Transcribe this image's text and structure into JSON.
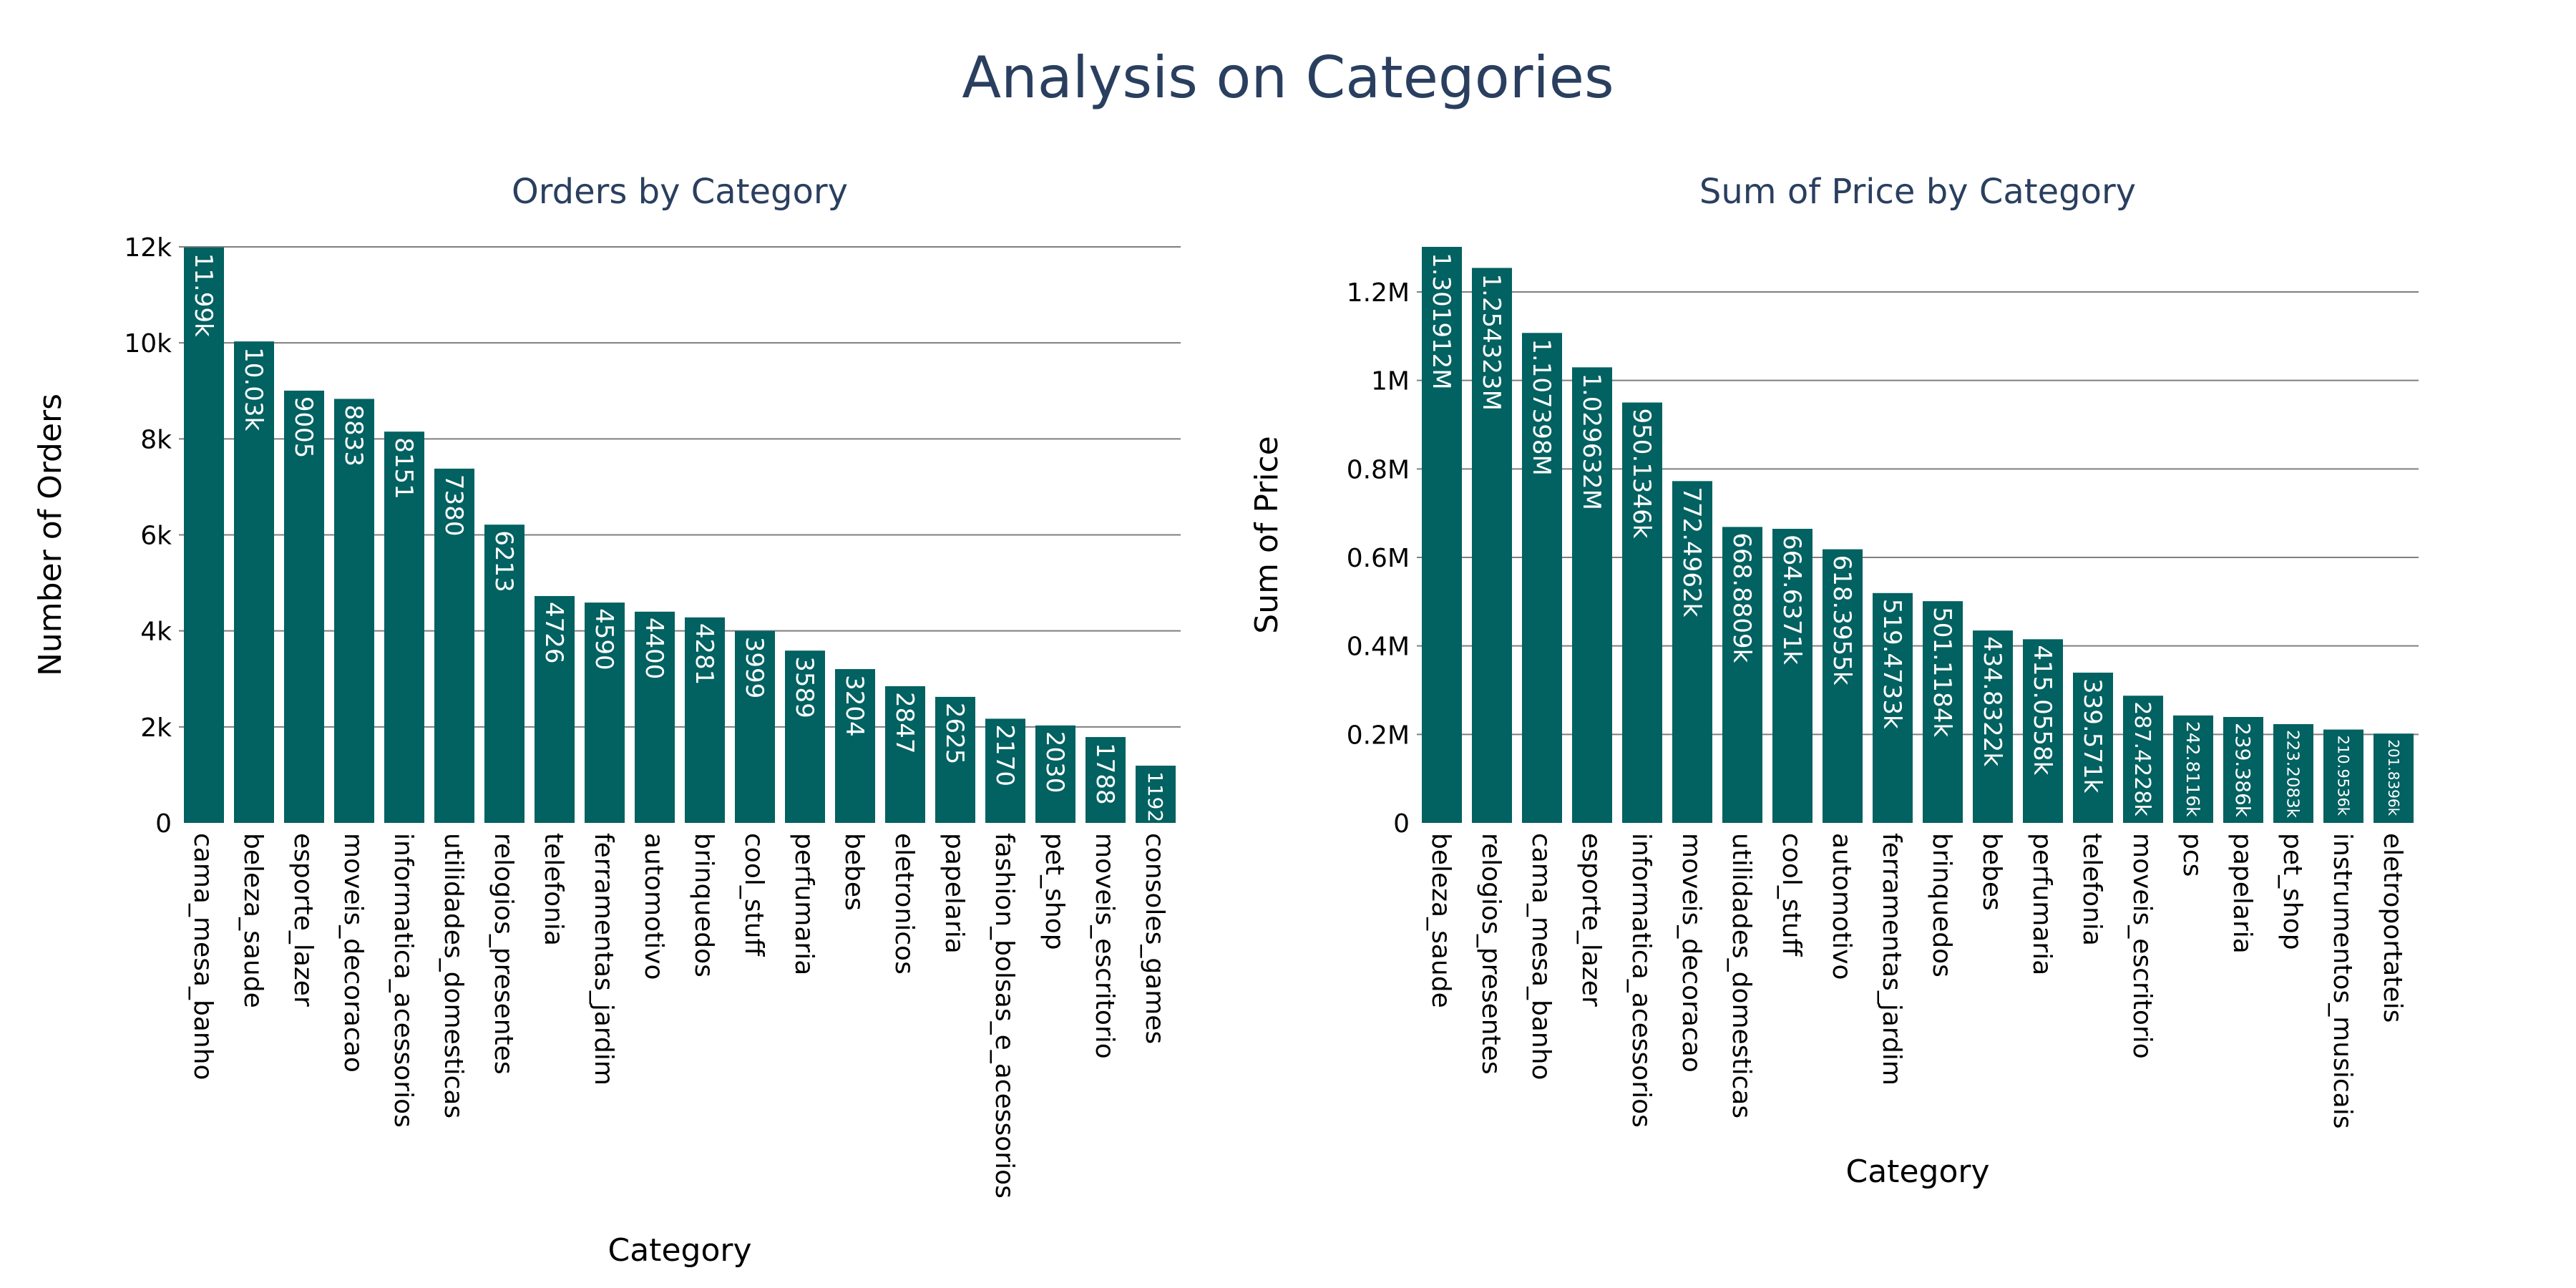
{
  "title": "Analysis on Categories",
  "colors": {
    "bar": "#026161",
    "bar_label": "#ffffff",
    "grid": "#7f7f7f",
    "text": "#2a3f5f",
    "axis_text": "#000000"
  },
  "chart_data": [
    {
      "type": "bar",
      "title": "Orders by Category",
      "xlabel": "Category",
      "ylabel": "Number of Orders",
      "ylim": [
        0,
        12000
      ],
      "yticks": [
        0,
        2000,
        4000,
        6000,
        8000,
        10000,
        12000
      ],
      "ytick_labels": [
        "0",
        "2k",
        "4k",
        "6k",
        "8k",
        "10k",
        "12k"
      ],
      "grid": true,
      "categories": [
        "cama_mesa_banho",
        "beleza_saude",
        "esporte_lazer",
        "moveis_decoracao",
        "informatica_acessorios",
        "utilidades_domesticas",
        "relogios_presentes",
        "telefonia",
        "ferramentas_jardim",
        "automotivo",
        "brinquedos",
        "cool_stuff",
        "perfumaria",
        "bebes",
        "eletronicos",
        "papelaria",
        "fashion_bolsas_e_acessorios",
        "pet_shop",
        "moveis_escritorio",
        "consoles_games"
      ],
      "values": [
        11990,
        10030,
        9005,
        8833,
        8151,
        7380,
        6213,
        4726,
        4590,
        4400,
        4281,
        3999,
        3589,
        3204,
        2847,
        2625,
        2170,
        2030,
        1788,
        1192
      ],
      "data_labels": [
        "11.99k",
        "10.03k",
        "9005",
        "8833",
        "8151",
        "7380",
        "6213",
        "4726",
        "4590",
        "4400",
        "4281",
        "3999",
        "3589",
        "3204",
        "2847",
        "2625",
        "2170",
        "2030",
        "1788",
        "1192"
      ]
    },
    {
      "type": "bar",
      "title": "Sum of Price by Category",
      "xlabel": "Category",
      "ylabel": "Sum of Price",
      "ylim": [
        0,
        1301912
      ],
      "yticks": [
        0,
        200000,
        400000,
        600000,
        800000,
        1000000,
        1200000
      ],
      "ytick_labels": [
        "0",
        "0.2M",
        "0.4M",
        "0.6M",
        "0.8M",
        "1M",
        "1.2M"
      ],
      "grid": true,
      "categories": [
        "beleza_saude",
        "relogios_presentes",
        "cama_mesa_banho",
        "esporte_lazer",
        "informatica_acessorios",
        "moveis_decoracao",
        "utilidades_domesticas",
        "cool_stuff",
        "automotivo",
        "ferramentas_jardim",
        "brinquedos",
        "bebes",
        "perfumaria",
        "telefonia",
        "moveis_escritorio",
        "pcs",
        "papelaria",
        "pet_shop",
        "instrumentos_musicais",
        "eletroportateis"
      ],
      "values": [
        1301912,
        1254323,
        1107398,
        1029632,
        950134.6,
        772496.2,
        668880.9,
        664637.1,
        618395.5,
        519473.3,
        501118.4,
        434832.2,
        415055.8,
        339571,
        287422.8,
        242811.6,
        239386,
        223208.3,
        210953.6,
        201839.6
      ],
      "data_labels": [
        "1.301912M",
        "1.254323M",
        "1.107398M",
        "1.029632M",
        "950.1346k",
        "772.4962k",
        "668.8809k",
        "664.6371k",
        "618.3955k",
        "519.4733k",
        "501.1184k",
        "434.8322k",
        "415.0558k",
        "339.571k",
        "287.4228k",
        "242.8116k",
        "239.386k",
        "223.2083k",
        "210.9536k",
        "201.8396k"
      ]
    }
  ]
}
